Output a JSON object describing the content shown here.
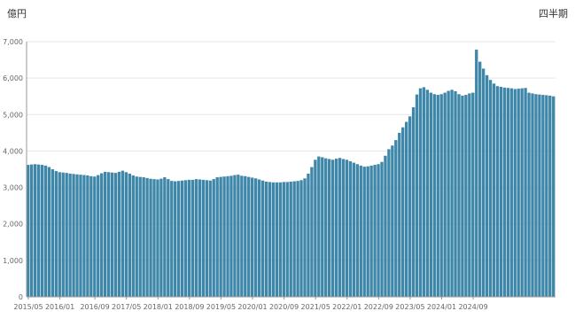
{
  "chart_data": {
    "type": "bar",
    "title": "",
    "ylabel_left": "億円",
    "ylabel_right": "四半期",
    "ylim": [
      0,
      7000
    ],
    "grid": true,
    "colors": {
      "bar": "#3f87a9",
      "grid": "#e6e6e6",
      "axis": "#999999"
    },
    "y_ticks": [
      {
        "value": 0,
        "label": "0"
      },
      {
        "value": 1000,
        "label": "1,000"
      },
      {
        "value": 2000,
        "label": "2,000"
      },
      {
        "value": 3000,
        "label": "3,000"
      },
      {
        "value": 4000,
        "label": "4,000"
      },
      {
        "value": 5000,
        "label": "5,000"
      },
      {
        "value": 6000,
        "label": "6,000"
      },
      {
        "value": 7000,
        "label": "7,000"
      }
    ],
    "x_tick_labels": [
      {
        "index": 0,
        "label": "2015/05"
      },
      {
        "index": 9,
        "label": "2016/01"
      },
      {
        "index": 19,
        "label": "2016/09"
      },
      {
        "index": 28,
        "label": "2017/05"
      },
      {
        "index": 37,
        "label": "2018/01"
      },
      {
        "index": 46,
        "label": "2018/09"
      },
      {
        "index": 55,
        "label": "2019/05"
      },
      {
        "index": 64,
        "label": "2020/01"
      },
      {
        "index": 73,
        "label": "2020/09"
      },
      {
        "index": 82,
        "label": "2021/05"
      },
      {
        "index": 91,
        "label": "2022/01"
      },
      {
        "index": 100,
        "label": "2022/09"
      },
      {
        "index": 109,
        "label": "2023/05"
      },
      {
        "index": 118,
        "label": "2024/01"
      },
      {
        "index": 127,
        "label": "2024/09"
      }
    ],
    "values": [
      3620,
      3630,
      3640,
      3630,
      3620,
      3600,
      3560,
      3500,
      3450,
      3420,
      3410,
      3400,
      3380,
      3370,
      3360,
      3350,
      3340,
      3330,
      3310,
      3300,
      3340,
      3390,
      3430,
      3420,
      3410,
      3400,
      3430,
      3460,
      3420,
      3380,
      3330,
      3300,
      3290,
      3280,
      3260,
      3240,
      3230,
      3220,
      3240,
      3280,
      3230,
      3180,
      3170,
      3180,
      3190,
      3200,
      3210,
      3210,
      3230,
      3220,
      3210,
      3200,
      3190,
      3230,
      3280,
      3290,
      3300,
      3310,
      3320,
      3340,
      3350,
      3320,
      3310,
      3290,
      3270,
      3250,
      3220,
      3190,
      3160,
      3150,
      3140,
      3140,
      3140,
      3150,
      3150,
      3160,
      3170,
      3180,
      3200,
      3250,
      3380,
      3560,
      3760,
      3850,
      3830,
      3800,
      3780,
      3760,
      3790,
      3810,
      3780,
      3760,
      3720,
      3680,
      3640,
      3600,
      3570,
      3580,
      3600,
      3620,
      3640,
      3700,
      3870,
      4050,
      4150,
      4300,
      4500,
      4650,
      4800,
      4950,
      5200,
      5550,
      5720,
      5750,
      5680,
      5600,
      5560,
      5540,
      5560,
      5600,
      5650,
      5680,
      5640,
      5560,
      5520,
      5540,
      5580,
      5600,
      6780,
      6450,
      6260,
      6080,
      5950,
      5850,
      5780,
      5760,
      5740,
      5730,
      5720,
      5700,
      5710,
      5720,
      5730,
      5600,
      5580,
      5560,
      5550,
      5540,
      5530,
      5520,
      5500
    ],
    "x_count": 151
  }
}
